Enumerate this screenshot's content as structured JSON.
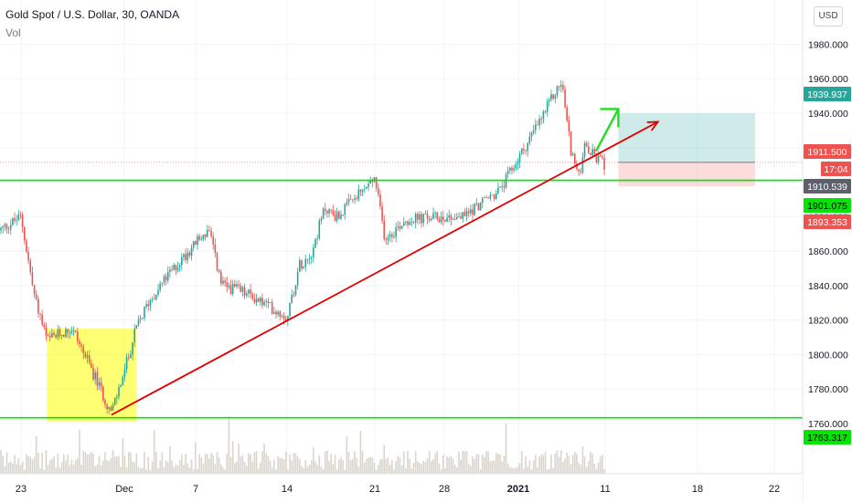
{
  "header": {
    "symbol_line": "Gold Spot / U.S. Dollar, 30, OANDA",
    "indicator": "Vol"
  },
  "currency_button": "USD",
  "colors": {
    "up": "#26a69a",
    "down": "#ef5350",
    "support": "#00e600",
    "trendline": "#e00000",
    "highlight": "#ffff00",
    "target_zone": "#26a69a",
    "stop_zone": "#ef5350",
    "arrow": "#22dd22",
    "volume": "#d4cfc4"
  },
  "chart_data": {
    "type": "candlestick",
    "timeframe": "30",
    "x_ticks": [
      "23",
      "Dec",
      "7",
      "14",
      "21",
      "28",
      "2021",
      "11",
      "18",
      "22"
    ],
    "y_ticks": [
      1760,
      1780,
      1800,
      1820,
      1840,
      1860,
      1880,
      1900,
      1920,
      1940,
      1960,
      1980
    ],
    "y_tick_labels": [
      "1760.000",
      "1780.000",
      "1800.000",
      "1820.000",
      "1840.000",
      "1860.000",
      "1880.000",
      "1900.000",
      "1920.000",
      "1940.000",
      "1960.000",
      "1980.000"
    ],
    "ylim": [
      1742,
      1994
    ],
    "price_path": [
      {
        "x": "2020-11-20",
        "y": 1872
      },
      {
        "x": "2020-11-23",
        "y": 1880
      },
      {
        "x": "2020-11-24",
        "y": 1835
      },
      {
        "x": "2020-11-25",
        "y": 1808
      },
      {
        "x": "2020-11-26",
        "y": 1812
      },
      {
        "x": "2020-11-27",
        "y": 1815
      },
      {
        "x": "2020-11-30",
        "y": 1766
      },
      {
        "x": "2020-12-01",
        "y": 1790
      },
      {
        "x": "2020-12-02",
        "y": 1815
      },
      {
        "x": "2020-12-03",
        "y": 1830
      },
      {
        "x": "2020-12-04",
        "y": 1840
      },
      {
        "x": "2020-12-07",
        "y": 1865
      },
      {
        "x": "2020-12-08",
        "y": 1872
      },
      {
        "x": "2020-12-09",
        "y": 1840
      },
      {
        "x": "2020-12-10",
        "y": 1838
      },
      {
        "x": "2020-12-11",
        "y": 1835
      },
      {
        "x": "2020-12-14",
        "y": 1822
      },
      {
        "x": "2020-12-15",
        "y": 1852
      },
      {
        "x": "2020-12-16",
        "y": 1860
      },
      {
        "x": "2020-12-17",
        "y": 1885
      },
      {
        "x": "2020-12-18",
        "y": 1880
      },
      {
        "x": "2020-12-21",
        "y": 1902
      },
      {
        "x": "2020-12-22",
        "y": 1868
      },
      {
        "x": "2020-12-23",
        "y": 1872
      },
      {
        "x": "2020-12-24",
        "y": 1878
      },
      {
        "x": "2020-12-28",
        "y": 1880
      },
      {
        "x": "2020-12-29",
        "y": 1880
      },
      {
        "x": "2020-12-30",
        "y": 1888
      },
      {
        "x": "2020-12-31",
        "y": 1895
      },
      {
        "x": "2021-01-04",
        "y": 1940
      },
      {
        "x": "2021-01-05",
        "y": 1950
      },
      {
        "x": "2021-01-06",
        "y": 1958
      },
      {
        "x": "2021-01-07",
        "y": 1920
      },
      {
        "x": "2021-01-08",
        "y": 1902
      },
      {
        "x": "2021-01-08T12:00",
        "y": 1920
      },
      {
        "x": "2021-01-11",
        "y": 1910
      }
    ],
    "support_lines": [
      1901.075,
      1763.317
    ],
    "trendline": {
      "from": {
        "x": "2020-11-30",
        "y": 1765
      },
      "to": {
        "x": "2021-01-15",
        "y": 1935
      }
    },
    "highlight_zone": {
      "x_from": "2020-11-25",
      "x_to": "2020-12-02",
      "y_from": 1761,
      "y_to": 1815
    },
    "position": {
      "x_from": "2021-01-12",
      "x_to": "2021-01-21",
      "target": 1939.937,
      "entry": 1911.5,
      "stop": 1897.5
    },
    "arrow": {
      "from": {
        "x": "2021-01-11",
        "y": 1918
      },
      "to": {
        "x": "2021-01-12",
        "y": 1935
      }
    },
    "price_labels": [
      {
        "text": "1939.937",
        "color": "#26a69a"
      },
      {
        "text": "1911.500",
        "color": "#ef5350"
      },
      {
        "text": "17:04",
        "color": "#ef5350"
      },
      {
        "text": "1910.539",
        "color": "#5d606b"
      },
      {
        "text": "1901.075",
        "color": "#00e600"
      },
      {
        "text": "1893.353",
        "color": "#ef5350"
      },
      {
        "text": "1763.317",
        "color": "#00e600"
      }
    ]
  }
}
